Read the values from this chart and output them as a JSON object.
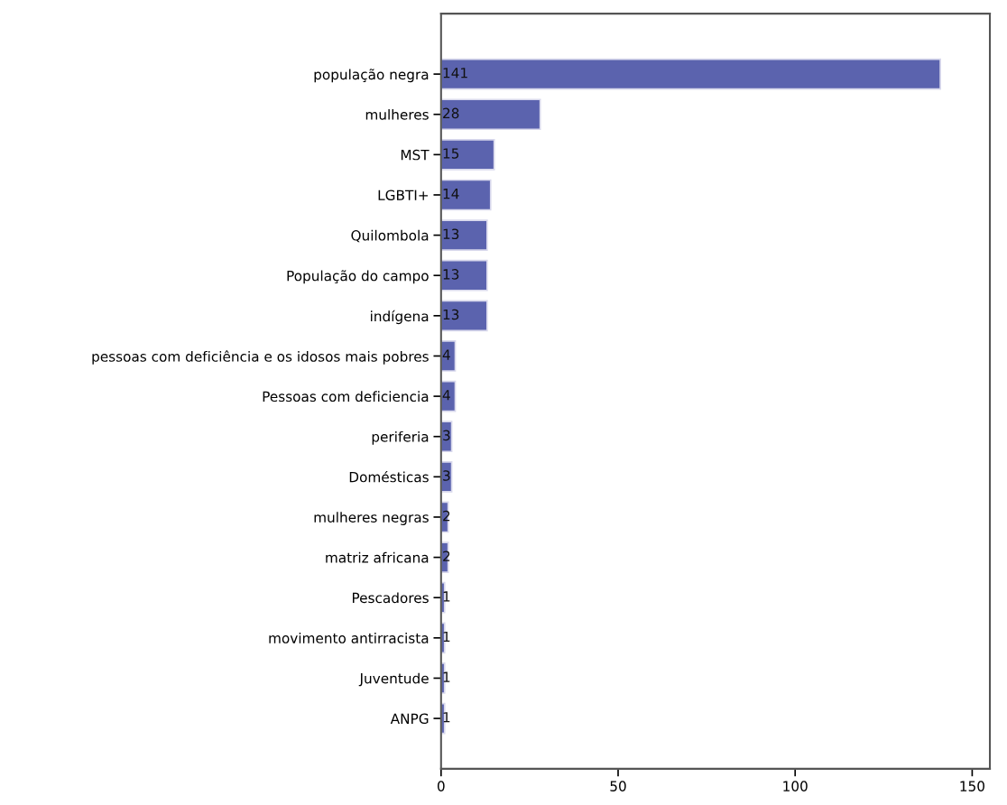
{
  "chart_data": {
    "type": "bar",
    "orientation": "horizontal",
    "categories": [
      "população negra",
      "mulheres",
      "MST",
      "LGBTI+",
      "Quilombola",
      "População do campo",
      "indígena",
      "pessoas com deficiência e os idosos mais pobres",
      "Pessoas com deficiencia",
      "periferia",
      "Domésticas",
      "mulheres negras",
      "matriz africana",
      "Pescadores",
      "movimento antirracista",
      "Juventude",
      "ANPG"
    ],
    "values": [
      141,
      28,
      15,
      14,
      13,
      13,
      13,
      4,
      4,
      3,
      3,
      2,
      2,
      1,
      1,
      1,
      1
    ],
    "color": "#5b63ae",
    "xlim": [
      0,
      155
    ],
    "xticks": [
      0,
      50,
      100,
      150
    ],
    "data_labels": true,
    "grid": false,
    "legend": false
  }
}
